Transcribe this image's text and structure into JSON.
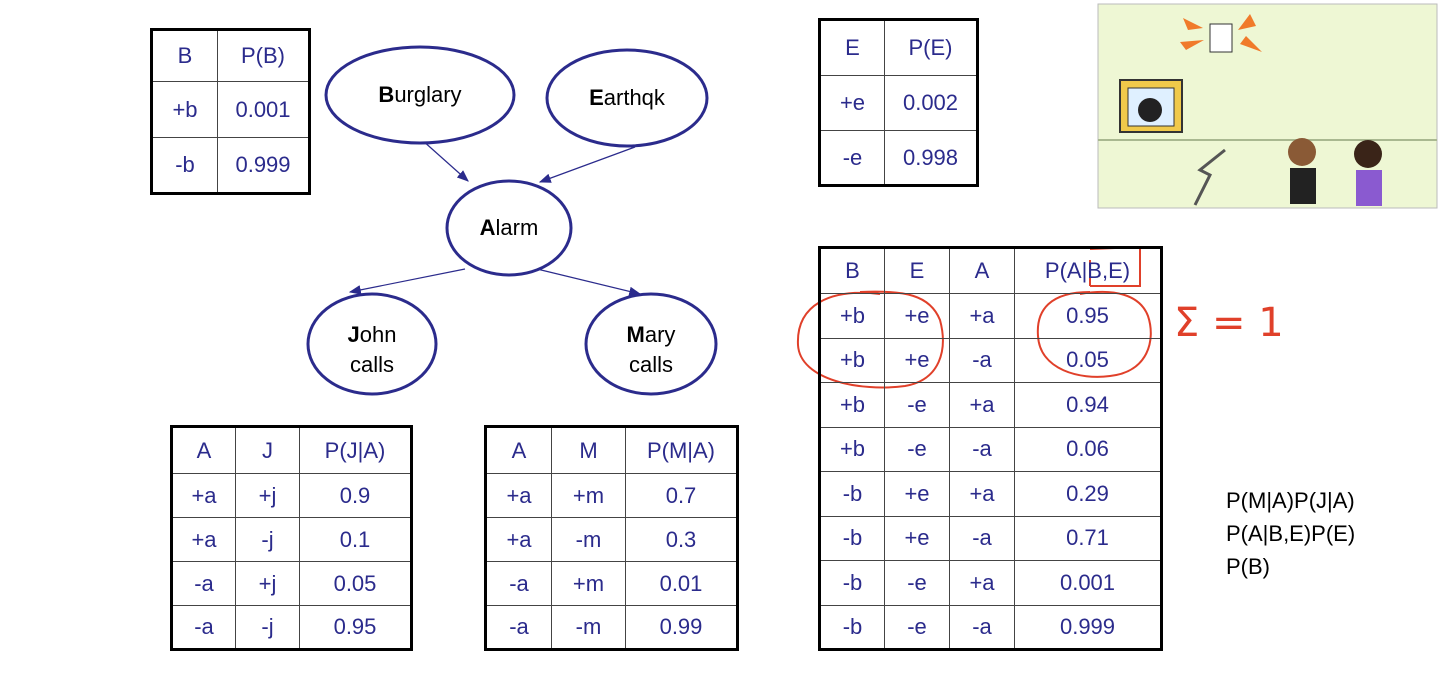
{
  "tables": {
    "b": {
      "header": [
        "B",
        "P(B)"
      ],
      "rows": [
        [
          "+b",
          "0.001"
        ],
        [
          "-b",
          "0.999"
        ]
      ]
    },
    "e": {
      "header": [
        "E",
        "P(E)"
      ],
      "rows": [
        [
          "+e",
          "0.002"
        ],
        [
          "-e",
          "0.998"
        ]
      ]
    },
    "a": {
      "header": [
        "B",
        "E",
        "A",
        "P(A|B,E)"
      ],
      "rows": [
        [
          "+b",
          "+e",
          "+a",
          "0.95"
        ],
        [
          "+b",
          "+e",
          "-a",
          "0.05"
        ],
        [
          "+b",
          "-e",
          "+a",
          "0.94"
        ],
        [
          "+b",
          "-e",
          "-a",
          "0.06"
        ],
        [
          "-b",
          "+e",
          "+a",
          "0.29"
        ],
        [
          "-b",
          "+e",
          "-a",
          "0.71"
        ],
        [
          "-b",
          "-e",
          "+a",
          "0.001"
        ],
        [
          "-b",
          "-e",
          "-a",
          "0.999"
        ]
      ]
    },
    "j": {
      "header": [
        "A",
        "J",
        "P(J|A)"
      ],
      "rows": [
        [
          "+a",
          "+j",
          "0.9"
        ],
        [
          "+a",
          "-j",
          "0.1"
        ],
        [
          "-a",
          "+j",
          "0.05"
        ],
        [
          "-a",
          "-j",
          "0.95"
        ]
      ]
    },
    "m": {
      "header": [
        "A",
        "M",
        "P(M|A)"
      ],
      "rows": [
        [
          "+a",
          "+m",
          "0.7"
        ],
        [
          "+a",
          "-m",
          "0.3"
        ],
        [
          "-a",
          "+m",
          "0.01"
        ],
        [
          "-a",
          "-m",
          "0.99"
        ]
      ]
    }
  },
  "nodes": [
    {
      "label": "Burglary"
    },
    {
      "label": "Earthqk"
    },
    {
      "label": "Alarm"
    },
    {
      "label": "John calls"
    },
    {
      "label": "Mary calls"
    }
  ],
  "annotation": "Σ = 1",
  "formula_lines": [
    "P(M|A)P(J|A)",
    "P(A|B,E)P(E)",
    "P(B)"
  ]
}
